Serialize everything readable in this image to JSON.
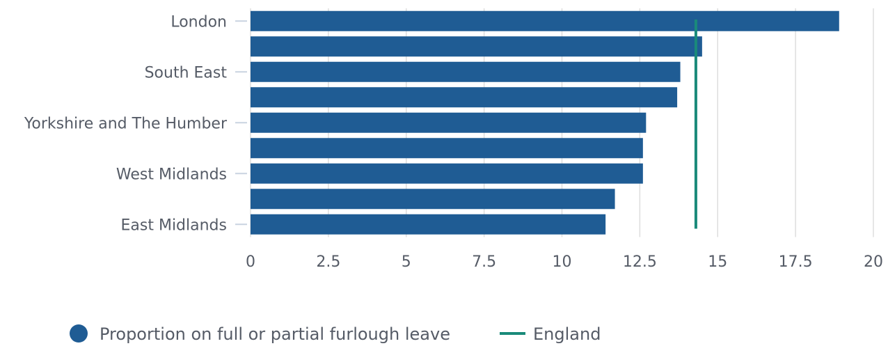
{
  "chart_data": {
    "type": "bar",
    "orientation": "horizontal",
    "categories": [
      "London",
      "",
      "South East",
      "",
      "Yorkshire and The Humber",
      "",
      "West Midlands",
      "",
      "East Midlands"
    ],
    "series": [
      {
        "name": "Proportion on full or partial furlough leave",
        "values": [
          18.9,
          14.5,
          13.8,
          13.7,
          12.7,
          12.6,
          12.6,
          11.7,
          11.4
        ]
      }
    ],
    "reference_line": {
      "name": "England",
      "value": 14.3
    },
    "xlim": [
      0,
      20
    ],
    "xticks": [
      0,
      2.5,
      5,
      7.5,
      10,
      12.5,
      15,
      17.5,
      20
    ],
    "xtick_labels": [
      "0",
      "2.5",
      "5",
      "7.5",
      "10",
      "12.5",
      "15",
      "17.5",
      "20"
    ],
    "grid": true,
    "legend_position": "bottom",
    "colors": {
      "bar": "#1f5c94",
      "reference": "#1a8a7a",
      "grid": "#dddddd",
      "text": "#555b66"
    }
  }
}
